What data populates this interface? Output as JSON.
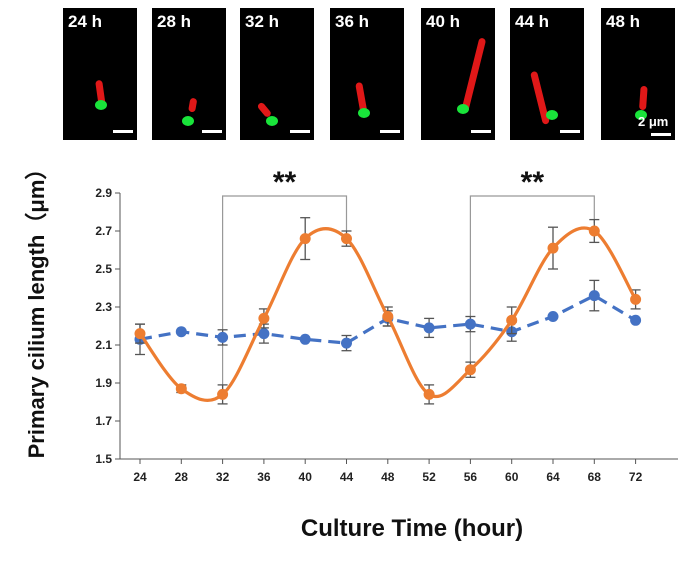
{
  "panels": {
    "labels": [
      "24 h",
      "28 h",
      "32 h",
      "36 h",
      "40 h",
      "44 h",
      "48 h"
    ],
    "scale_bar_label": "2 μm"
  },
  "chart_data": {
    "type": "line",
    "x": [
      24,
      28,
      32,
      36,
      40,
      44,
      48,
      52,
      56,
      60,
      64,
      68,
      72
    ],
    "xlabel": "Culture Time (hour)",
    "ylabel": "Primary cilium length（μm）",
    "ylim": [
      1.5,
      2.9
    ],
    "yticks": [
      1.5,
      1.7,
      1.9,
      2.1,
      2.3,
      2.5,
      2.7,
      2.9
    ],
    "series": [
      {
        "color": "#4472c4",
        "style": "dashed",
        "values": [
          2.13,
          2.17,
          2.14,
          2.16,
          2.13,
          2.11,
          2.24,
          2.19,
          2.21,
          2.17,
          2.25,
          2.36,
          2.23
        ],
        "errors": [
          0.08,
          0.0,
          0.04,
          0.05,
          0.0,
          0.04,
          0.04,
          0.05,
          0.04,
          0.05,
          0.0,
          0.08,
          0.0
        ]
      },
      {
        "color": "#ed7d31",
        "style": "smooth",
        "values": [
          2.16,
          1.87,
          1.84,
          2.24,
          2.66,
          2.66,
          2.25,
          1.84,
          1.97,
          2.23,
          2.61,
          2.7,
          2.34
        ],
        "errors": [
          0.05,
          0.02,
          0.05,
          0.05,
          0.11,
          0.04,
          0.05,
          0.05,
          0.04,
          0.07,
          0.11,
          0.06,
          0.05
        ]
      }
    ],
    "annotations": [
      {
        "text": "**",
        "x_start": 32,
        "x_end": 44
      },
      {
        "text": "**",
        "x_start": 56,
        "x_end": 68
      }
    ]
  }
}
